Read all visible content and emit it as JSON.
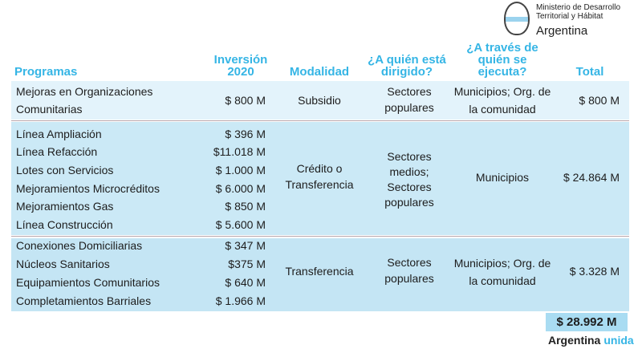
{
  "brand": {
    "ministry": "Ministerio de Desarrollo Territorial y Hábitat",
    "country": "Argentina",
    "footer_a": "Argentina",
    "footer_b": "unida"
  },
  "headers": {
    "programas": "Programas",
    "inversion": "Inversión 2020",
    "modalidad": "Modalidad",
    "dirigido": "¿A quién está dirigido?",
    "ejecuta": "¿A través de quién se ejecuta?",
    "total": "Total"
  },
  "groups": [
    {
      "programs": [
        {
          "name": "Mejoras en Organizaciones Comunitarias",
          "amount": "$ 800 M"
        }
      ],
      "modalidad": "Subsidio",
      "dirigido": "Sectores populares",
      "ejecuta": "Municipios; Org. de la comunidad",
      "total": "$ 800 M"
    },
    {
      "programs": [
        {
          "name": "Línea Ampliación",
          "amount": "$ 396 M"
        },
        {
          "name": "Línea Refacción",
          "amount": "$11.018 M"
        },
        {
          "name": "Lotes con Servicios",
          "amount": "$ 1.000 M"
        },
        {
          "name": "Mejoramientos Microcréditos",
          "amount": "$ 6.000 M"
        },
        {
          "name": "Mejoramientos Gas",
          "amount": "$ 850 M"
        },
        {
          "name": "Línea Construcción",
          "amount": "$ 5.600 M"
        }
      ],
      "modalidad": "Crédito o Transferencia",
      "dirigido": "Sectores medios; Sectores populares",
      "ejecuta": "Municipios",
      "total": "$ 24.864 M"
    },
    {
      "programs": [
        {
          "name": "Conexiones Domiciliarias",
          "amount": "$ 347 M"
        },
        {
          "name": "Núcleos Sanitarios",
          "amount": "$375 M"
        },
        {
          "name": "Equipamientos Comunitarios",
          "amount": "$ 640 M"
        },
        {
          "name": "Completamientos Barriales",
          "amount": "$ 1.966 M"
        }
      ],
      "modalidad": "Transferencia",
      "dirigido": "Sectores populares",
      "ejecuta": "Municipios; Org. de la comunidad",
      "total": "$ 3.328 M"
    }
  ],
  "grand_total": "$ 28.992 M",
  "colors": {
    "accent": "#35b5e5",
    "row1": "#e3f3fb",
    "row2": "#cbe9f6",
    "row3": "#c4e5f4",
    "total_box": "#a9dcf2"
  }
}
